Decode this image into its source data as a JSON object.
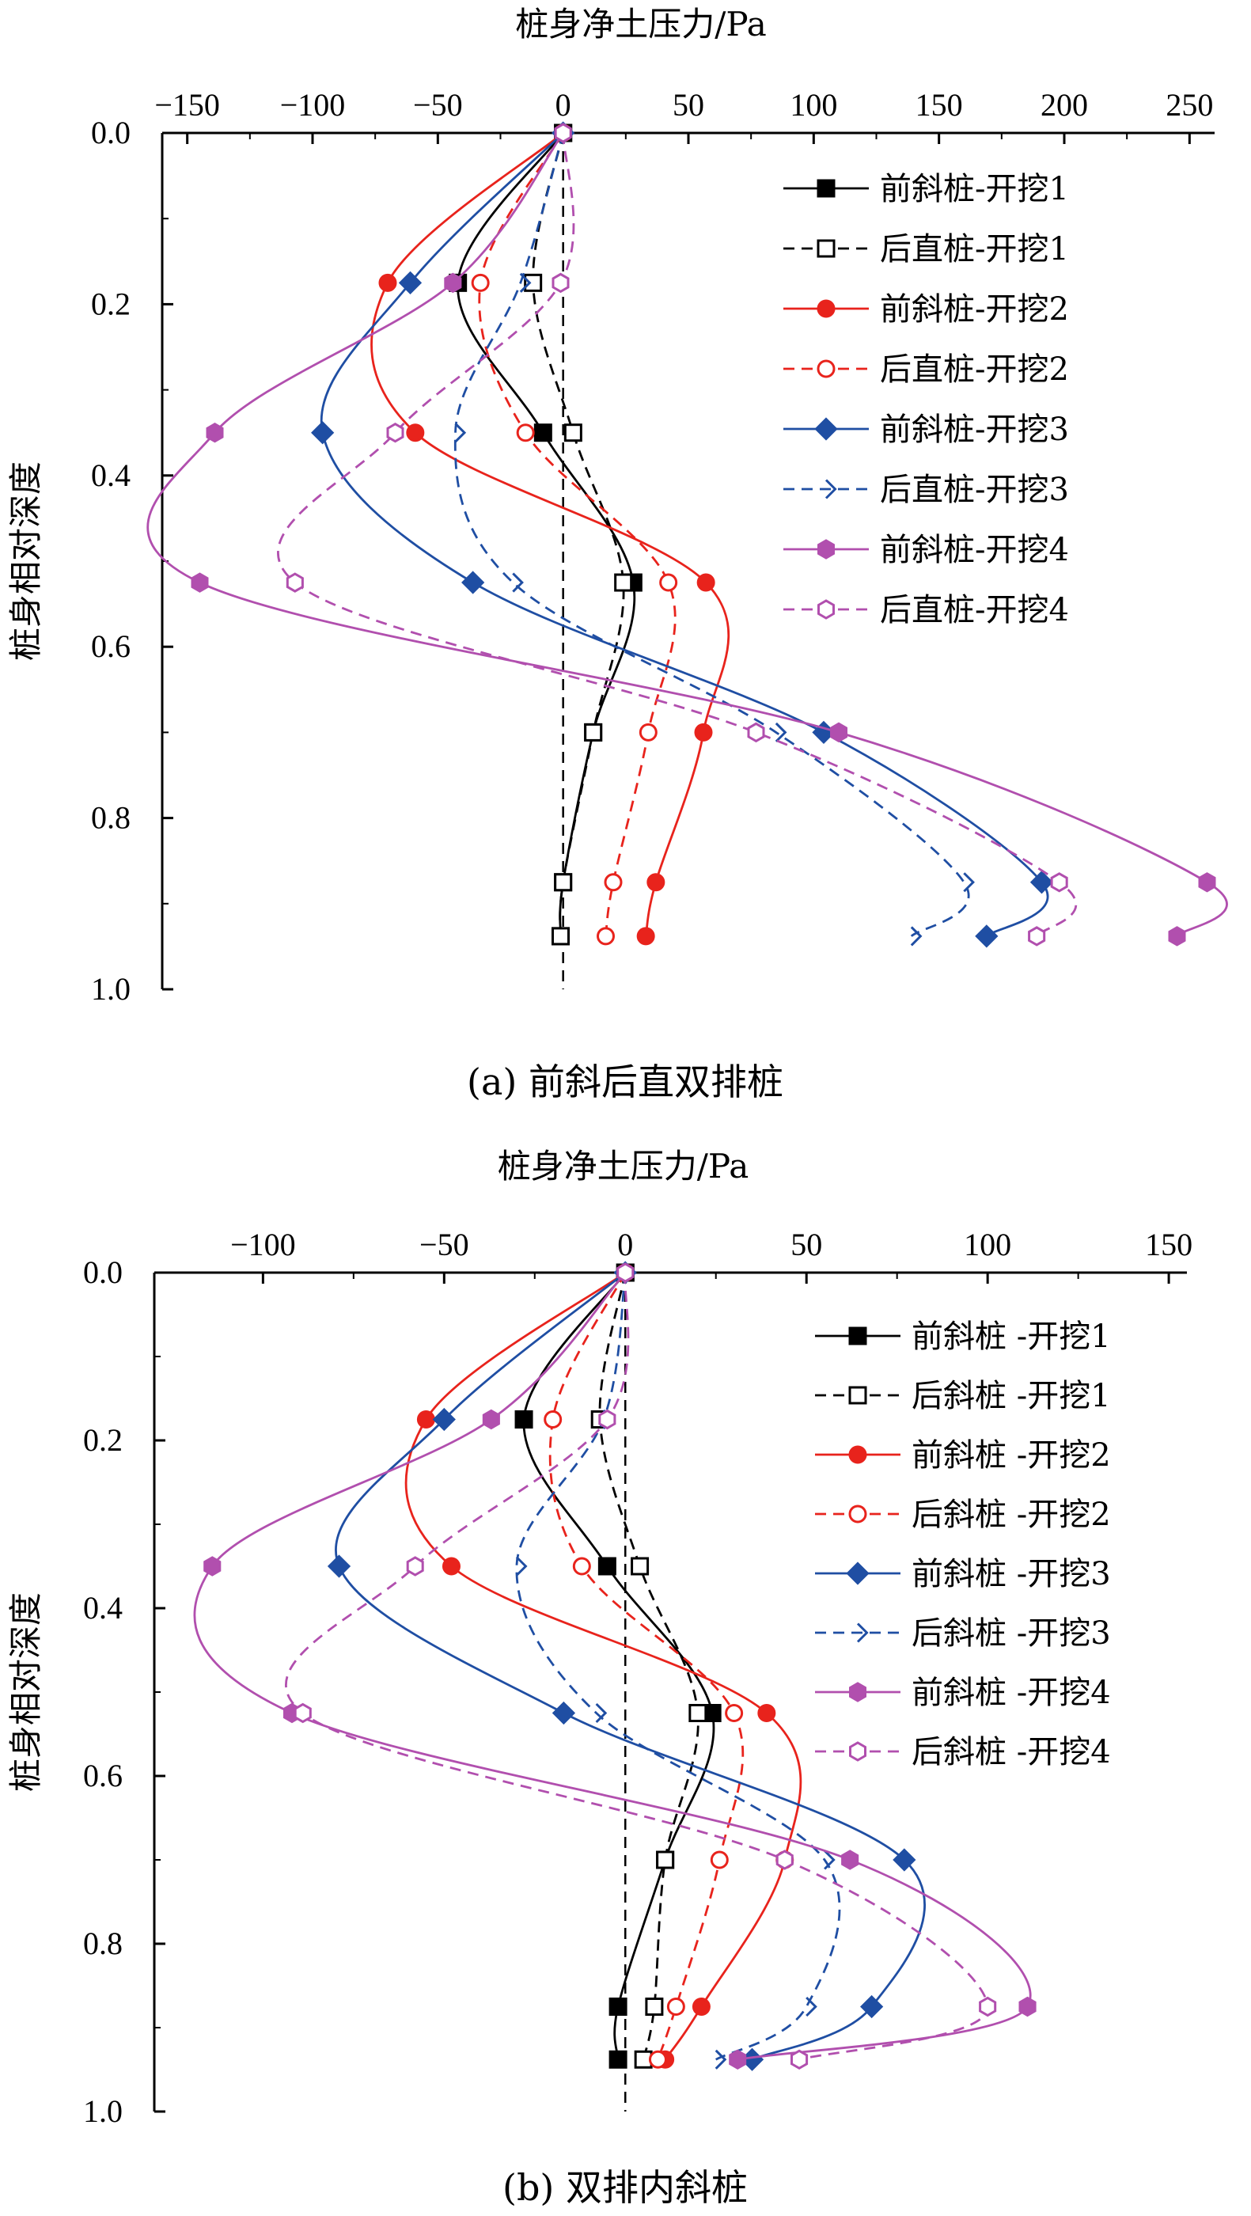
{
  "charts": [
    {
      "id": "a",
      "type": "line",
      "caption": "(a) 前斜后直双排桩",
      "xlabel": "桩身净土压力/Pa",
      "ylabel": "桩身相对深度",
      "xlim": [
        -160,
        260
      ],
      "ylim": [
        0.0,
        1.0
      ],
      "xticks": [
        -150,
        -100,
        -50,
        0,
        50,
        100,
        150,
        200,
        250
      ],
      "yticks": [
        0.0,
        0.2,
        0.4,
        0.6,
        0.8,
        1.0
      ],
      "ytick_labels": [
        "0.0",
        "0.2",
        "0.4",
        "0.6",
        "0.8",
        "1.0"
      ],
      "x_axis_position": "top",
      "zero_line": true,
      "legend_placement": "top-right",
      "series": [
        {
          "name": "前斜桩-开挖1",
          "color": "#000000",
          "marker": "square-filled",
          "dash": false,
          "y": [
            0.0,
            0.175,
            0.35,
            0.525,
            0.7,
            0.875,
            0.938
          ],
          "x": [
            0,
            -42,
            -8,
            28,
            12,
            0,
            -1
          ]
        },
        {
          "name": "后直桩-开挖1",
          "color": "#000000",
          "marker": "square-open",
          "dash": true,
          "y": [
            0.0,
            0.175,
            0.35,
            0.525,
            0.7,
            0.875,
            0.938
          ],
          "x": [
            0,
            -12,
            4,
            24,
            12,
            0,
            -1
          ]
        },
        {
          "name": "前斜桩-开挖2",
          "color": "#e8231c",
          "marker": "circle-filled",
          "dash": false,
          "y": [
            0.0,
            0.175,
            0.35,
            0.525,
            0.7,
            0.875,
            0.938
          ],
          "x": [
            0,
            -70,
            -59,
            57,
            56,
            37,
            33
          ]
        },
        {
          "name": "后直桩-开挖2",
          "color": "#e8231c",
          "marker": "circle-open",
          "dash": true,
          "y": [
            0.0,
            0.175,
            0.35,
            0.525,
            0.7,
            0.875,
            0.938
          ],
          "x": [
            0,
            -33,
            -15,
            42,
            34,
            20,
            17
          ]
        },
        {
          "name": "前斜桩-开挖3",
          "color": "#1f4ea3",
          "marker": "diamond-filled",
          "dash": false,
          "y": [
            0.0,
            0.175,
            0.35,
            0.525,
            0.7,
            0.875,
            0.938
          ],
          "x": [
            0,
            -61,
            -96,
            -36,
            104,
            191,
            169
          ]
        },
        {
          "name": "后直桩-开挖3",
          "color": "#1f4ea3",
          "marker": "chevron-open",
          "dash": true,
          "y": [
            0.0,
            0.175,
            0.35,
            0.525,
            0.7,
            0.875,
            0.938
          ],
          "x": [
            0,
            -17,
            -43,
            -20,
            85,
            160,
            139
          ]
        },
        {
          "name": "前斜桩-开挖4",
          "color": "#b14fae",
          "marker": "hexagon-filled",
          "dash": false,
          "y": [
            0.0,
            0.175,
            0.35,
            0.525,
            0.7,
            0.875,
            0.938
          ],
          "x": [
            0,
            -44,
            -139,
            -145,
            110,
            257,
            245
          ]
        },
        {
          "name": "后直桩-开挖4",
          "color": "#b14fae",
          "marker": "hexagon-open",
          "dash": true,
          "y": [
            0.0,
            0.175,
            0.35,
            0.525,
            0.7,
            0.875,
            0.938
          ],
          "x": [
            0,
            -1,
            -67,
            -107,
            77,
            198,
            189
          ]
        }
      ]
    },
    {
      "id": "b",
      "type": "line",
      "caption": "(b) 双排内斜桩",
      "xlabel": "桩身净土压力/Pa",
      "ylabel": "桩身相对深度",
      "xlim": [
        -130,
        155
      ],
      "ylim": [
        0.0,
        1.0
      ],
      "xticks": [
        -100,
        -50,
        0,
        50,
        100,
        150
      ],
      "yticks": [
        0.0,
        0.2,
        0.4,
        0.6,
        0.8,
        1.0
      ],
      "ytick_labels": [
        "0.0",
        "0.2",
        "0.4",
        "0.6",
        "0.8",
        "1.0"
      ],
      "x_axis_position": "top",
      "zero_line": true,
      "legend_placement": "top-right",
      "series": [
        {
          "name": "前斜桩 -开挖1",
          "color": "#000000",
          "marker": "square-filled",
          "dash": false,
          "y": [
            0.0,
            0.175,
            0.35,
            0.525,
            0.7,
            0.875,
            0.938
          ],
          "x": [
            0,
            -28,
            -5,
            24,
            11,
            -2,
            -2
          ]
        },
        {
          "name": "后斜桩 -开挖1",
          "color": "#000000",
          "marker": "square-open",
          "dash": true,
          "y": [
            0.0,
            0.175,
            0.35,
            0.525,
            0.7,
            0.875,
            0.938
          ],
          "x": [
            0,
            -7,
            4,
            20,
            11,
            8,
            5
          ]
        },
        {
          "name": "前斜桩 -开挖2",
          "color": "#e8231c",
          "marker": "circle-filled",
          "dash": false,
          "y": [
            0.0,
            0.175,
            0.35,
            0.525,
            0.7,
            0.875,
            0.938
          ],
          "x": [
            0,
            -55,
            -48,
            39,
            44,
            21,
            11
          ]
        },
        {
          "name": "后斜桩 -开挖2",
          "color": "#e8231c",
          "marker": "circle-open",
          "dash": true,
          "y": [
            0.0,
            0.175,
            0.35,
            0.525,
            0.7,
            0.875,
            0.938
          ],
          "x": [
            0,
            -20,
            -12,
            30,
            26,
            14,
            9
          ]
        },
        {
          "name": "前斜桩 -开挖3",
          "color": "#1f4ea3",
          "marker": "diamond-filled",
          "dash": false,
          "y": [
            0.0,
            0.175,
            0.35,
            0.525,
            0.7,
            0.875,
            0.938
          ],
          "x": [
            0,
            -50,
            -79,
            -17,
            77,
            68,
            35
          ]
        },
        {
          "name": "后斜桩 -开挖3",
          "color": "#1f4ea3",
          "marker": "chevron-open",
          "dash": true,
          "y": [
            0.0,
            0.175,
            0.35,
            0.525,
            0.7,
            0.875,
            0.938
          ],
          "x": [
            0,
            -6,
            -30,
            -8,
            55,
            50,
            25
          ]
        },
        {
          "name": "前斜桩 -开挖4",
          "color": "#b14fae",
          "marker": "hexagon-filled",
          "dash": false,
          "y": [
            0.0,
            0.175,
            0.35,
            0.525,
            0.7,
            0.875,
            0.938
          ],
          "x": [
            0,
            -37,
            -114,
            -92,
            62,
            111,
            31
          ]
        },
        {
          "name": "后斜桩 -开挖4",
          "color": "#b14fae",
          "marker": "hexagon-open",
          "dash": true,
          "y": [
            0.0,
            0.175,
            0.35,
            0.525,
            0.7,
            0.875,
            0.938
          ],
          "x": [
            0,
            -5,
            -58,
            -89,
            44,
            100,
            48
          ]
        }
      ]
    }
  ]
}
